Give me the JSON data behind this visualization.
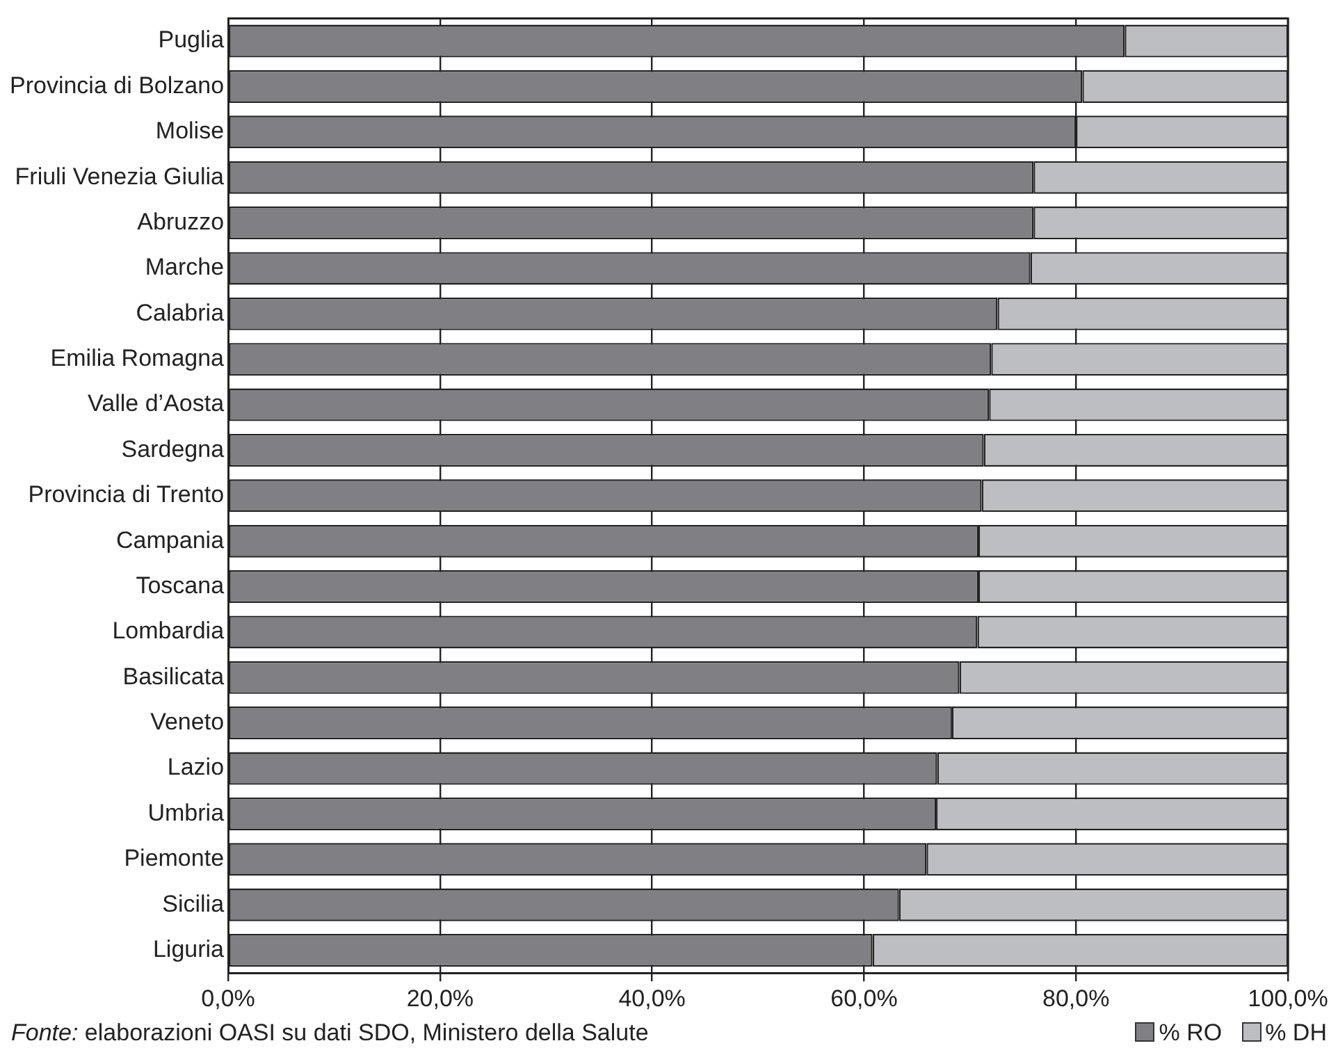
{
  "chart_data": {
    "type": "bar",
    "orientation": "horizontal",
    "stacked": true,
    "categories": [
      "Puglia",
      "Provincia di Bolzano",
      "Molise",
      "Friuli Venezia Giulia",
      "Abruzzo",
      "Marche",
      "Calabria",
      "Emilia Romagna",
      "Valle d’Aosta",
      "Sardegna",
      "Provincia di Trento",
      "Campania",
      "Toscana",
      "Lombardia",
      "Basilicata",
      "Veneto",
      "Lazio",
      "Umbria",
      "Piemonte",
      "Sicilia",
      "Liguria"
    ],
    "series": [
      {
        "name": "% RO",
        "color": "#808084",
        "values": [
          84.6,
          80.6,
          80.0,
          76.0,
          76.0,
          75.7,
          72.6,
          72.0,
          71.8,
          71.3,
          71.1,
          70.8,
          70.8,
          70.7,
          69.0,
          68.3,
          66.9,
          66.8,
          65.9,
          63.3,
          60.8
        ]
      },
      {
        "name": "% DH",
        "color": "#bdbec2",
        "values": [
          15.4,
          19.4,
          20.0,
          24.0,
          24.0,
          24.3,
          27.4,
          28.0,
          28.2,
          28.7,
          28.9,
          29.2,
          29.2,
          29.3,
          31.0,
          31.7,
          33.1,
          33.2,
          34.1,
          36.7,
          39.2
        ]
      }
    ],
    "xlim": [
      0,
      100
    ],
    "xticks": [
      {
        "value": 0,
        "label": "0,0%"
      },
      {
        "value": 20,
        "label": "20,0%"
      },
      {
        "value": 40,
        "label": "40,0%"
      },
      {
        "value": 60,
        "label": "60,0%"
      },
      {
        "value": 80,
        "label": "80,0%"
      },
      {
        "value": 100,
        "label": "100,0%"
      }
    ],
    "grid": "x",
    "legend": "bottom right",
    "annotations": [
      "Fonte: elaborazioni OASI su dati SDO, Ministero della Salute"
    ]
  }
}
